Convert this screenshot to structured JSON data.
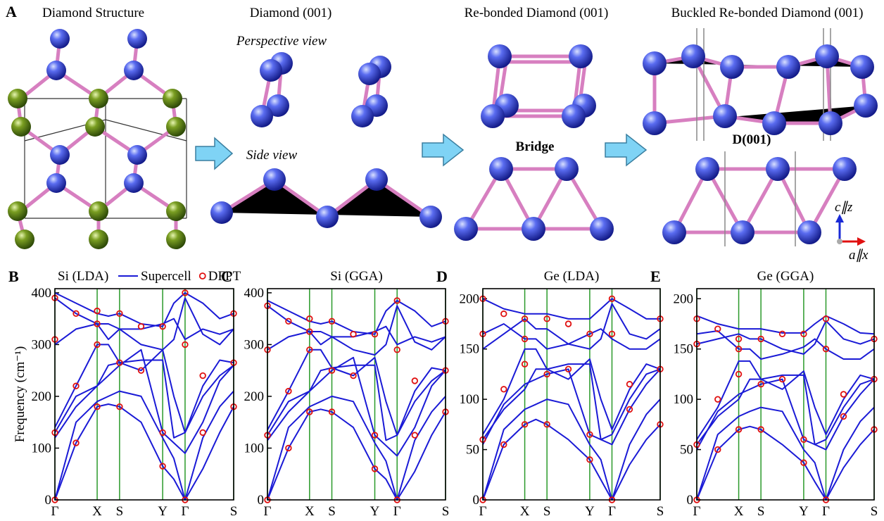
{
  "panel_a": {
    "label": "A",
    "titles": [
      "Diamond Structure",
      "Diamond (001)",
      "Re-bonded Diamond (001)",
      "Buckled Re-bonded Diamond (001)"
    ],
    "perspective": "Perspective view",
    "side": "Side view",
    "bridge": "Bridge",
    "d001": "D(001)",
    "axis_c": "c∥z",
    "axis_a": "a∥x"
  },
  "chart_data": [
    {
      "type": "line",
      "label": "B",
      "title": "Si (LDA)",
      "ylabel": "Frequency (cm⁻¹)",
      "grid": true,
      "grid_color": "#2a9a2a",
      "x": [
        0,
        0.5,
        1,
        1.265,
        1.53,
        2.04,
        2.55,
        2.815,
        3.08,
        3.5,
        3.9,
        4.23
      ],
      "xlim": [
        0,
        4.23
      ],
      "xticks": [
        {
          "value": 0,
          "label": "Γ"
        },
        {
          "value": 1,
          "label": "X"
        },
        {
          "value": 1.53,
          "label": "S"
        },
        {
          "value": 2.55,
          "label": "Y"
        },
        {
          "value": 3.08,
          "label": "Γ"
        },
        {
          "value": 4.23,
          "label": "S"
        }
      ],
      "ylim": [
        0,
        408
      ],
      "yticks": [
        0,
        100,
        200,
        300,
        400
      ],
      "series": [
        {
          "name": "Supercell",
          "color": "#1a1ad6",
          "values": [
            [
              0,
              110,
              180,
              185,
              180,
              150,
              65,
              40,
              0,
              60,
              130,
              180
            ],
            [
              0,
              150,
              190,
              200,
              210,
              200,
              120,
              80,
              0,
              120,
              180,
              210
            ],
            [
              130,
              200,
              220,
              240,
              260,
              290,
              130,
              110,
              90,
              150,
              230,
              260
            ],
            [
              140,
              220,
              300,
              300,
              265,
              250,
              290,
              200,
              130,
              220,
              270,
              265
            ],
            [
              300,
              330,
              340,
              310,
              330,
              300,
              290,
              310,
              390,
              320,
              300,
              330
            ],
            [
              400,
              380,
              360,
              355,
              360,
              340,
              335,
              380,
              400,
              380,
              350,
              360
            ],
            [
              390,
              360,
              340,
              340,
              330,
              330,
              340,
              350,
              310,
              330,
              320,
              330
            ],
            [
              120,
              180,
              220,
              260,
              265,
              270,
              270,
              120,
              130,
              200,
              240,
              260
            ]
          ]
        },
        {
          "name": "DFPT",
          "color": "#e01010",
          "x": [
            0,
            0,
            0,
            0,
            0.5,
            0.5,
            0.5,
            1,
            1,
            1,
            1,
            1.53,
            1.53,
            1.53,
            2.04,
            2.04,
            2.55,
            2.55,
            2.55,
            3.08,
            3.08,
            3.08,
            3.5,
            3.5,
            4.23,
            4.23,
            4.23
          ],
          "values": [
            0,
            130,
            310,
            390,
            110,
            220,
            360,
            180,
            300,
            340,
            365,
            180,
            265,
            360,
            250,
            335,
            65,
            130,
            335,
            0,
            300,
            400,
            130,
            240,
            180,
            265,
            360
          ]
        }
      ]
    },
    {
      "type": "line",
      "label": "C",
      "title": "Si (GGA)",
      "grid": true,
      "grid_color": "#2a9a2a",
      "x": [
        0,
        0.5,
        1,
        1.265,
        1.53,
        2.04,
        2.55,
        2.815,
        3.08,
        3.5,
        3.9,
        4.23
      ],
      "xlim": [
        0,
        4.23
      ],
      "xticks": [
        {
          "value": 0,
          "label": "Γ"
        },
        {
          "value": 1,
          "label": "X"
        },
        {
          "value": 1.53,
          "label": "S"
        },
        {
          "value": 2.55,
          "label": "Y"
        },
        {
          "value": 3.08,
          "label": "Γ"
        },
        {
          "value": 4.23,
          "label": "S"
        }
      ],
      "ylim": [
        0,
        408
      ],
      "yticks": [
        0,
        100,
        200,
        300,
        400
      ],
      "series": [
        {
          "color": "#1a1ad6",
          "values": [
            [
              0,
              100,
              170,
              175,
              170,
              140,
              60,
              40,
              0,
              55,
              125,
              170
            ],
            [
              0,
              140,
              180,
              190,
              200,
              190,
              110,
              75,
              0,
              115,
              170,
              200
            ],
            [
              125,
              190,
              210,
              230,
              250,
              275,
              125,
              105,
              85,
              140,
              220,
              250
            ],
            [
              135,
              210,
              290,
              290,
              255,
              240,
              275,
              190,
              125,
              210,
              255,
              250
            ],
            [
              290,
              315,
              325,
              300,
              315,
              290,
              280,
              300,
              375,
              305,
              290,
              315
            ],
            [
              385,
              365,
              345,
              340,
              345,
              325,
              320,
              365,
              385,
              365,
              335,
              345
            ],
            [
              375,
              345,
              325,
              325,
              315,
              315,
              325,
              335,
              300,
              315,
              305,
              315
            ],
            [
              115,
              170,
              210,
              250,
              255,
              260,
              260,
              115,
              125,
              190,
              230,
              250
            ]
          ]
        },
        {
          "color": "#e01010",
          "x": [
            0,
            0,
            0,
            0,
            0.5,
            0.5,
            0.5,
            1,
            1,
            1,
            1,
            1.53,
            1.53,
            1.53,
            2.04,
            2.04,
            2.55,
            2.55,
            2.55,
            3.08,
            3.08,
            3.08,
            3.5,
            3.5,
            4.23,
            4.23,
            4.23
          ],
          "values": [
            0,
            125,
            290,
            375,
            100,
            210,
            345,
            170,
            290,
            325,
            350,
            170,
            250,
            345,
            240,
            320,
            60,
            125,
            320,
            0,
            290,
            385,
            125,
            230,
            170,
            250,
            345
          ]
        }
      ]
    },
    {
      "type": "line",
      "label": "D",
      "title": "Ge (LDA)",
      "grid": true,
      "grid_color": "#2a9a2a",
      "x": [
        0,
        0.5,
        1,
        1.265,
        1.53,
        2.04,
        2.55,
        2.815,
        3.08,
        3.5,
        3.9,
        4.23
      ],
      "xlim": [
        0,
        4.23
      ],
      "xticks": [
        {
          "value": 0,
          "label": "Γ"
        },
        {
          "value": 1,
          "label": "X"
        },
        {
          "value": 1.53,
          "label": "S"
        },
        {
          "value": 2.55,
          "label": "Y"
        },
        {
          "value": 3.08,
          "label": "Γ"
        },
        {
          "value": 4.23,
          "label": "S"
        }
      ],
      "ylim": [
        0,
        210
      ],
      "yticks": [
        0,
        50,
        100,
        150,
        200
      ],
      "series": [
        {
          "color": "#1a1ad6",
          "values": [
            [
              0,
              55,
              75,
              80,
              75,
              60,
              40,
              20,
              0,
              35,
              60,
              75
            ],
            [
              0,
              70,
              90,
              95,
              100,
              95,
              55,
              40,
              0,
              55,
              85,
              100
            ],
            [
              55,
              95,
              115,
              120,
              125,
              130,
              65,
              60,
              55,
              90,
              115,
              130
            ],
            [
              65,
              100,
              150,
              150,
              130,
              120,
              140,
              100,
              70,
              110,
              135,
              130
            ],
            [
              150,
              165,
              180,
              170,
              170,
              155,
              150,
              160,
              195,
              165,
              160,
              170
            ],
            [
              200,
              190,
              185,
              185,
              185,
              180,
              180,
              190,
              200,
              190,
              180,
              180
            ],
            [
              165,
              175,
              160,
              160,
              150,
              155,
              165,
              170,
              160,
              150,
              150,
              160
            ],
            [
              60,
              90,
              110,
              130,
              130,
              135,
              135,
              60,
              65,
              100,
              125,
              130
            ]
          ]
        },
        {
          "color": "#e01010",
          "x": [
            0,
            0,
            0,
            0,
            0.5,
            0.5,
            0.5,
            1,
            1,
            1,
            1,
            1.53,
            1.53,
            1.53,
            2.04,
            2.04,
            2.55,
            2.55,
            2.55,
            3.08,
            3.08,
            3.08,
            3.5,
            3.5,
            4.23,
            4.23,
            4.23
          ],
          "values": [
            0,
            60,
            165,
            200,
            55,
            110,
            185,
            75,
            135,
            160,
            180,
            75,
            125,
            180,
            130,
            175,
            40,
            65,
            165,
            0,
            165,
            200,
            90,
            115,
            75,
            130,
            180
          ]
        }
      ]
    },
    {
      "type": "line",
      "label": "E",
      "title": "Ge (GGA)",
      "grid": true,
      "grid_color": "#2a9a2a",
      "x": [
        0,
        0.5,
        1,
        1.265,
        1.53,
        2.04,
        2.55,
        2.815,
        3.08,
        3.5,
        3.9,
        4.23
      ],
      "xlim": [
        0,
        4.23
      ],
      "xticks": [
        {
          "value": 0,
          "label": "Γ"
        },
        {
          "value": 1,
          "label": "X"
        },
        {
          "value": 1.53,
          "label": "S"
        },
        {
          "value": 2.55,
          "label": "Y"
        },
        {
          "value": 3.08,
          "label": "Γ"
        },
        {
          "value": 4.23,
          "label": "S"
        }
      ],
      "ylim": [
        0,
        210
      ],
      "yticks": [
        0,
        50,
        100,
        150,
        200
      ],
      "series": [
        {
          "color": "#1a1ad6",
          "values": [
            [
              0,
              50,
              70,
              73,
              70,
              55,
              37,
              18,
              0,
              32,
              55,
              70
            ],
            [
              0,
              65,
              83,
              88,
              92,
              88,
              50,
              37,
              0,
              50,
              78,
              92
            ],
            [
              50,
              88,
              105,
              110,
              115,
              120,
              60,
              55,
              50,
              83,
              105,
              120
            ],
            [
              60,
              92,
              138,
              138,
              120,
              110,
              128,
              92,
              65,
              100,
              124,
              120
            ],
            [
              155,
              160,
              165,
              160,
              160,
              150,
              145,
              155,
              178,
              160,
              155,
              160
            ],
            [
              183,
              175,
              170,
              170,
              170,
              166,
              166,
              175,
              183,
              175,
              166,
              165
            ],
            [
              165,
              168,
              150,
              150,
              140,
              145,
              152,
              160,
              150,
              140,
              140,
              150
            ],
            [
              55,
              83,
              100,
              120,
              120,
              124,
              124,
              55,
              60,
              92,
              115,
              120
            ]
          ]
        },
        {
          "color": "#e01010",
          "x": [
            0,
            0,
            0,
            0,
            0.5,
            0.5,
            0.5,
            1,
            1,
            1,
            1,
            1.53,
            1.53,
            1.53,
            2.04,
            2.04,
            2.55,
            2.55,
            2.55,
            3.08,
            3.08,
            3.08,
            3.5,
            3.5,
            4.23,
            4.23,
            4.23
          ],
          "values": [
            0,
            55,
            155,
            180,
            50,
            100,
            170,
            70,
            125,
            150,
            160,
            70,
            115,
            160,
            120,
            165,
            37,
            60,
            165,
            0,
            150,
            180,
            83,
            105,
            70,
            120,
            160
          ]
        }
      ]
    }
  ]
}
